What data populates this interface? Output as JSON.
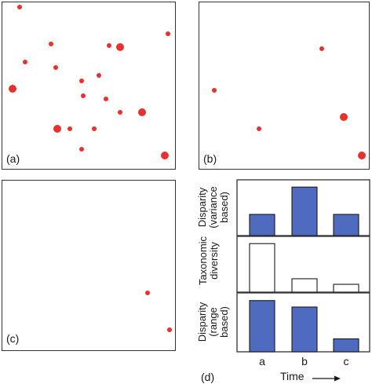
{
  "panel_labels": {
    "a": "(a)",
    "b": "(b)",
    "c": "(c)",
    "d": "(d)"
  },
  "colors": {
    "dot": "#e8302d",
    "bar_fill": "#4f6bbf",
    "bar_edge": "#1a1a1a",
    "empty_fill": "#ffffff"
  },
  "chart_data": [
    {
      "type": "scatter",
      "panel": "(a)",
      "x": [
        0.1,
        0.96,
        0.62,
        0.68,
        0.28,
        0.13,
        0.31,
        0.06,
        0.46,
        0.56,
        0.47,
        0.6,
        0.68,
        0.81,
        0.32,
        0.39,
        0.53,
        0.46,
        0.94
      ],
      "y": [
        0.97,
        0.81,
        0.74,
        0.73,
        0.75,
        0.64,
        0.61,
        0.48,
        0.53,
        0.56,
        0.44,
        0.42,
        0.34,
        0.34,
        0.24,
        0.24,
        0.24,
        0.12,
        0.08
      ],
      "size": [
        3,
        3,
        3,
        5,
        3,
        3,
        3,
        5,
        3,
        3,
        3,
        3,
        3,
        5,
        5,
        3,
        3,
        3,
        5
      ]
    },
    {
      "type": "scatter",
      "panel": "(b)",
      "x": [
        0.72,
        0.09,
        0.35,
        0.85,
        0.96
      ],
      "y": [
        0.72,
        0.47,
        0.24,
        0.31,
        0.08
      ],
      "size": [
        3,
        3,
        3,
        5,
        5
      ]
    },
    {
      "type": "scatter",
      "panel": "(c)",
      "x": [
        0.84,
        0.97
      ],
      "y": [
        0.34,
        0.12
      ],
      "size": [
        3,
        3
      ]
    },
    {
      "type": "bar",
      "panel": "(d)",
      "categories": [
        "a",
        "b",
        "c"
      ],
      "xlabel": "Time",
      "subplots": [
        {
          "ylabel": "Disparity\n(variance\nbased)",
          "values": [
            0.38,
            0.87,
            0.38
          ],
          "filled": true
        },
        {
          "ylabel": "Taxonomic\ndiversity",
          "values": [
            0.87,
            0.24,
            0.14
          ],
          "filled": false
        },
        {
          "ylabel": "Disparity\n(range\nbased)",
          "values": [
            0.87,
            0.76,
            0.22
          ],
          "filled": true
        }
      ],
      "ylim": [
        0,
        1
      ]
    }
  ]
}
